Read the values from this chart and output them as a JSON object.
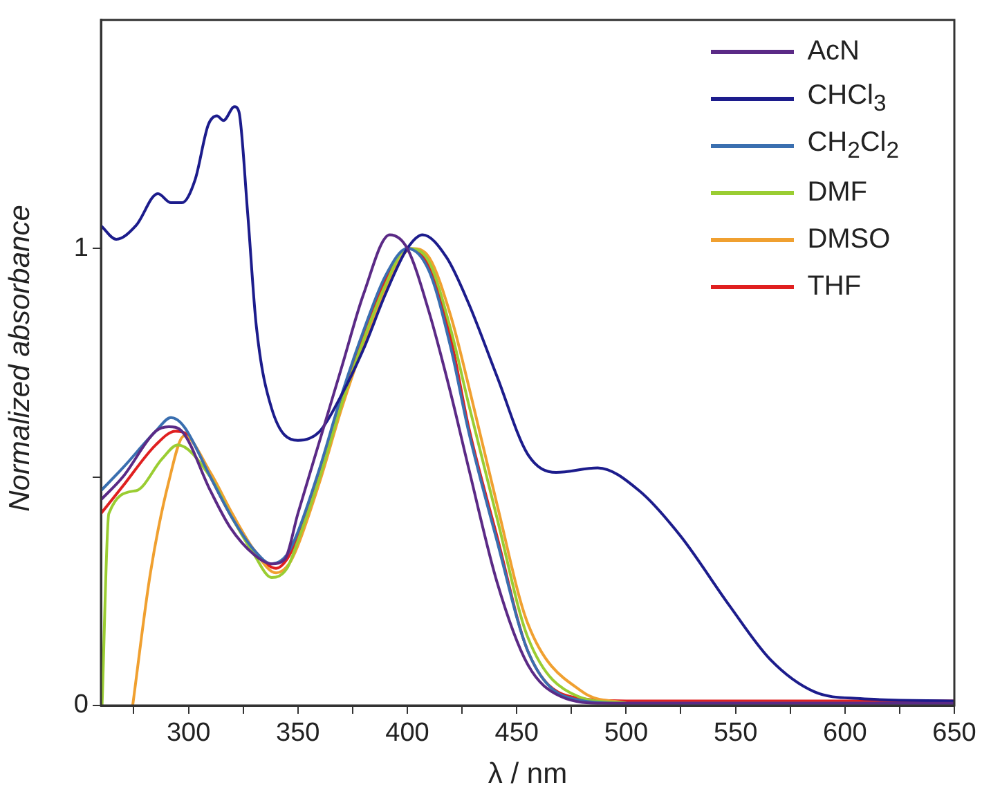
{
  "chart_data": {
    "type": "line",
    "xlabel": "λ / nm",
    "ylabel": "Normalized absorbance",
    "xlim": [
      260,
      650
    ],
    "ylim": [
      0,
      1.5
    ],
    "xticks": [
      {
        "value": 275,
        "label": null
      },
      300,
      {
        "value": 325,
        "label": null
      },
      350,
      {
        "value": 375,
        "label": null
      },
      400,
      {
        "value": 425,
        "label": null
      },
      450,
      {
        "value": 475,
        "label": null
      },
      500,
      {
        "value": 525,
        "label": null
      },
      550,
      {
        "value": 575,
        "label": null
      },
      600,
      {
        "value": 625,
        "label": null
      },
      650
    ],
    "yticks": [
      0,
      {
        "value": 0.5,
        "label": null
      },
      1
    ],
    "grid": false,
    "legend": "top right",
    "marker": "none",
    "line_style": "solid",
    "series": [
      {
        "name": "AcN",
        "color": "#5b2a86",
        "x": [
          260,
          270,
          285,
          291,
          297,
          310,
          319,
          330,
          338,
          344,
          350,
          360,
          370,
          380,
          392,
          400,
          410,
          420,
          428,
          441,
          455,
          470,
          490,
          520,
          560,
          600,
          650
        ],
        "values": [
          0.45,
          0.5,
          0.6,
          0.61,
          0.6,
          0.47,
          0.39,
          0.33,
          0.31,
          0.32,
          0.42,
          0.58,
          0.74,
          0.9,
          1.03,
          1.0,
          0.86,
          0.68,
          0.52,
          0.27,
          0.09,
          0.02,
          0.005,
          0.005,
          0.005,
          0.005,
          0.005
        ]
      },
      {
        "name": "CHCl$_{3}$",
        "color": "#1c1c8c",
        "x": [
          260,
          267,
          276,
          286,
          292,
          297,
          303,
          309,
          313,
          316,
          321,
          323,
          327,
          331,
          338,
          350,
          360,
          370,
          380,
          390,
          400,
          407,
          418,
          428,
          441,
          455,
          468,
          487,
          506,
          525,
          547,
          566,
          586,
          607,
          650
        ],
        "values": [
          1.05,
          1.02,
          1.05,
          1.12,
          1.1,
          1.1,
          1.15,
          1.27,
          1.29,
          1.28,
          1.31,
          1.3,
          1.08,
          0.83,
          0.65,
          0.58,
          0.6,
          0.68,
          0.78,
          0.9,
          1.0,
          1.03,
          0.98,
          0.88,
          0.72,
          0.55,
          0.51,
          0.52,
          0.47,
          0.37,
          0.22,
          0.1,
          0.03,
          0.015,
          0.01
        ]
      },
      {
        "name": "CH$_{2}$Cl$_{2}$",
        "color": "#3a6fb0",
        "x": [
          260,
          270,
          285,
          292,
          298,
          310,
          320,
          330,
          338,
          345,
          350,
          360,
          370,
          380,
          390,
          400,
          410,
          420,
          428,
          441,
          455,
          472,
          500,
          550,
          600,
          650
        ],
        "values": [
          0.47,
          0.52,
          0.6,
          0.63,
          0.61,
          0.5,
          0.41,
          0.34,
          0.31,
          0.33,
          0.38,
          0.52,
          0.68,
          0.82,
          0.94,
          1.0,
          0.95,
          0.78,
          0.6,
          0.36,
          0.12,
          0.02,
          0.005,
          0.005,
          0.005,
          0.005
        ]
      },
      {
        "name": "DMF",
        "color": "#9acd32",
        "x": [
          260.5,
          263.6,
          276,
          288,
          295,
          310,
          320,
          330,
          338,
          345,
          350,
          360,
          370,
          380,
          390,
          400,
          410,
          420,
          428,
          441,
          455,
          478,
          500
        ],
        "values": [
          0,
          0.42,
          0.47,
          0.54,
          0.57,
          0.5,
          0.41,
          0.33,
          0.28,
          0.3,
          0.36,
          0.5,
          0.66,
          0.8,
          0.92,
          1.0,
          0.97,
          0.82,
          0.66,
          0.41,
          0.15,
          0.02,
          0.005
        ]
      },
      {
        "name": "DMSO",
        "color": "#f0a030",
        "x": [
          274.5,
          282.6,
          291,
          298,
          310,
          320,
          330,
          340,
          346,
          350,
          360,
          370,
          380,
          390,
          402,
          410,
          420,
          428,
          441,
          455,
          480,
          500
        ],
        "values": [
          0,
          0.29,
          0.49,
          0.59,
          0.51,
          0.42,
          0.34,
          0.29,
          0.31,
          0.35,
          0.49,
          0.65,
          0.79,
          0.91,
          1.0,
          0.98,
          0.85,
          0.7,
          0.44,
          0.18,
          0.03,
          0.005
        ]
      },
      {
        "name": "THF",
        "color": "#e02020",
        "x": [
          260,
          270,
          285,
          294,
          300,
          310,
          320,
          330,
          340,
          345,
          350,
          360,
          370,
          380,
          390,
          400,
          410,
          420,
          428,
          441,
          455,
          474,
          500,
          550,
          600,
          650
        ],
        "values": [
          0.42,
          0.48,
          0.57,
          0.6,
          0.59,
          0.5,
          0.41,
          0.34,
          0.3,
          0.32,
          0.37,
          0.51,
          0.67,
          0.81,
          0.93,
          1.0,
          0.96,
          0.8,
          0.61,
          0.37,
          0.12,
          0.02,
          0.01,
          0.01,
          0.01,
          0.01
        ]
      }
    ]
  }
}
